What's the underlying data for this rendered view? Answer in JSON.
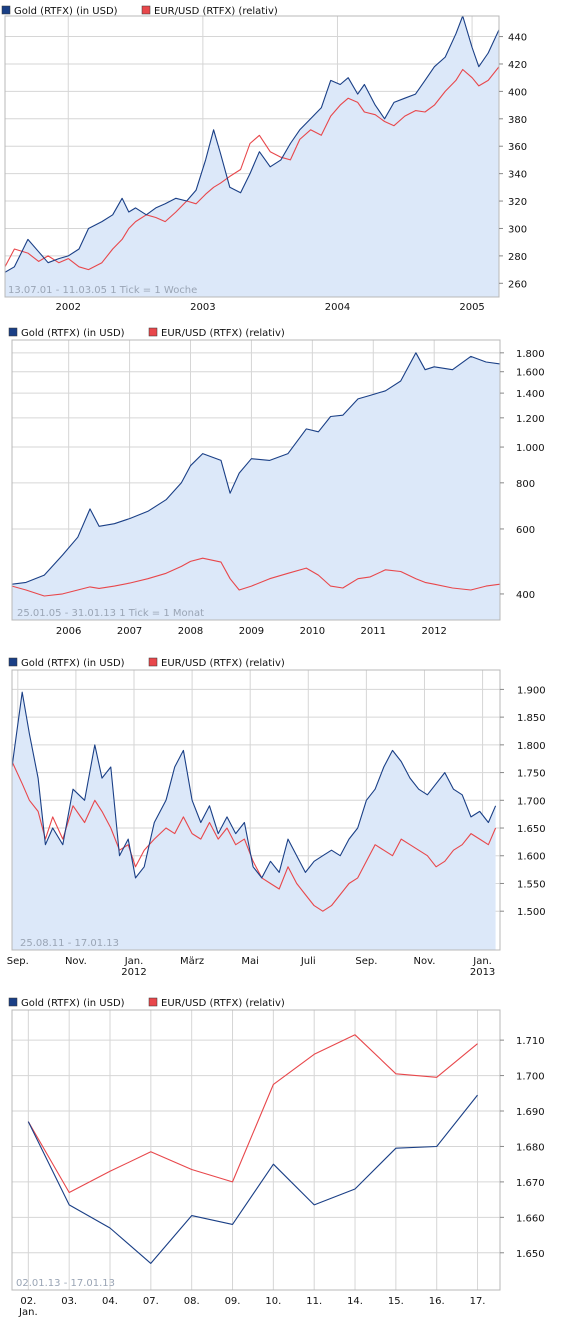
{
  "colors": {
    "gold": "#1a3f86",
    "eurusd": "#e8474b",
    "area": "#dce8f9",
    "grid": "#d6d6d6"
  },
  "chart_data": [
    {
      "type": "line",
      "legend": [
        {
          "name": "Gold (RTFX) (in USD)"
        },
        {
          "name": "EUR/USD (RTFX) (relativ)"
        }
      ],
      "note": "13.07.01 - 11.03.05   1 Tick = 1 Woche",
      "ylim": [
        250,
        455
      ],
      "yticks": [
        {
          "value": 260,
          "label": "260"
        },
        {
          "value": 280,
          "label": "280"
        },
        {
          "value": 300,
          "label": "300"
        },
        {
          "value": 320,
          "label": "320"
        },
        {
          "value": 340,
          "label": "340"
        },
        {
          "value": 360,
          "label": "360"
        },
        {
          "value": 380,
          "label": "380"
        },
        {
          "value": 400,
          "label": "400"
        },
        {
          "value": 420,
          "label": "420"
        },
        {
          "value": 440,
          "label": "440"
        }
      ],
      "xlim": [
        2001.53,
        2005.2
      ],
      "xticks": [
        {
          "value": 2002.0,
          "label": "2002"
        },
        {
          "value": 2003.0,
          "label": "2003"
        },
        {
          "value": 2004.0,
          "label": "2004"
        },
        {
          "value": 2005.0,
          "label": "2005"
        }
      ],
      "series": [
        {
          "name": "Gold (RTFX) (in USD)",
          "area": true,
          "x": [
            2001.53,
            2001.6,
            2001.7,
            2001.78,
            2001.85,
            2001.93,
            2002.0,
            2002.08,
            2002.15,
            2002.25,
            2002.33,
            2002.4,
            2002.45,
            2002.5,
            2002.58,
            2002.65,
            2002.72,
            2002.8,
            2002.88,
            2002.95,
            2003.02,
            2003.08,
            2003.13,
            2003.2,
            2003.28,
            2003.35,
            2003.42,
            2003.5,
            2003.58,
            2003.65,
            2003.72,
            2003.8,
            2003.88,
            2003.95,
            2004.02,
            2004.08,
            2004.15,
            2004.2,
            2004.28,
            2004.35,
            2004.42,
            2004.5,
            2004.58,
            2004.65,
            2004.72,
            2004.8,
            2004.88,
            2004.93,
            2005.0,
            2005.05,
            2005.12,
            2005.2
          ],
          "values": [
            268,
            272,
            292,
            283,
            275,
            278,
            280,
            285,
            300,
            305,
            310,
            322,
            312,
            315,
            310,
            315,
            318,
            322,
            320,
            328,
            350,
            372,
            355,
            330,
            326,
            340,
            356,
            345,
            350,
            362,
            372,
            380,
            388,
            408,
            405,
            410,
            398,
            405,
            390,
            380,
            392,
            395,
            398,
            408,
            418,
            425,
            442,
            455,
            432,
            418,
            428,
            445
          ]
        },
        {
          "name": "EUR/USD (RTFX) (relativ)",
          "area": false,
          "x": [
            2001.53,
            2001.6,
            2001.7,
            2001.78,
            2001.85,
            2001.93,
            2002.0,
            2002.08,
            2002.15,
            2002.25,
            2002.33,
            2002.4,
            2002.45,
            2002.5,
            2002.58,
            2002.65,
            2002.72,
            2002.8,
            2002.88,
            2002.95,
            2003.02,
            2003.08,
            2003.13,
            2003.2,
            2003.28,
            2003.35,
            2003.42,
            2003.5,
            2003.58,
            2003.65,
            2003.72,
            2003.8,
            2003.88,
            2003.95,
            2004.02,
            2004.08,
            2004.15,
            2004.2,
            2004.28,
            2004.35,
            2004.42,
            2004.5,
            2004.58,
            2004.65,
            2004.72,
            2004.8,
            2004.88,
            2004.93,
            2005.0,
            2005.05,
            2005.12,
            2005.2
          ],
          "values": [
            272,
            285,
            282,
            276,
            280,
            275,
            278,
            272,
            270,
            275,
            285,
            292,
            300,
            305,
            310,
            308,
            305,
            312,
            320,
            318,
            325,
            330,
            333,
            338,
            343,
            362,
            368,
            356,
            352,
            350,
            365,
            372,
            368,
            382,
            390,
            395,
            392,
            385,
            383,
            378,
            375,
            382,
            386,
            385,
            390,
            400,
            408,
            416,
            410,
            404,
            408,
            418
          ]
        }
      ]
    },
    {
      "type": "line",
      "legend": [
        {
          "name": "Gold (RTFX) (in USD)"
        },
        {
          "name": "EUR/USD (RTFX) (relativ)"
        }
      ],
      "note": "25.01.05 - 31.01.13   1 Tick = 1 Monat",
      "log": true,
      "ylim": [
        340,
        1950
      ],
      "yticks": [
        {
          "value": 400,
          "label": "400"
        },
        {
          "value": 600,
          "label": "600"
        },
        {
          "value": 800,
          "label": "800"
        },
        {
          "value": 1000,
          "label": "1.000"
        },
        {
          "value": 1200,
          "label": "1.200"
        },
        {
          "value": 1400,
          "label": "1.400"
        },
        {
          "value": 1600,
          "label": "1.600"
        },
        {
          "value": 1800,
          "label": "1.800"
        }
      ],
      "xlim": [
        2005.07,
        2013.08
      ],
      "xticks": [
        {
          "value": 2006.0,
          "label": "2006"
        },
        {
          "value": 2007.0,
          "label": "2007"
        },
        {
          "value": 2008.0,
          "label": "2008"
        },
        {
          "value": 2009.0,
          "label": "2009"
        },
        {
          "value": 2010.0,
          "label": "2010"
        },
        {
          "value": 2011.0,
          "label": "2011"
        },
        {
          "value": 2012.0,
          "label": "2012"
        }
      ],
      "series": [
        {
          "name": "Gold (RTFX) (in USD)",
          "area": true,
          "x": [
            2005.07,
            2005.3,
            2005.6,
            2005.9,
            2006.15,
            2006.35,
            2006.5,
            2006.75,
            2007.0,
            2007.3,
            2007.6,
            2007.85,
            2008.0,
            2008.2,
            2008.5,
            2008.65,
            2008.8,
            2009.0,
            2009.3,
            2009.6,
            2009.9,
            2010.1,
            2010.3,
            2010.5,
            2010.75,
            2010.95,
            2011.2,
            2011.45,
            2011.7,
            2011.85,
            2012.0,
            2012.3,
            2012.6,
            2012.85,
            2013.08
          ],
          "values": [
            425,
            430,
            450,
            510,
            570,
            680,
            610,
            620,
            640,
            670,
            720,
            800,
            890,
            960,
            920,
            750,
            850,
            930,
            920,
            960,
            1120,
            1100,
            1210,
            1220,
            1350,
            1380,
            1420,
            1510,
            1800,
            1620,
            1650,
            1620,
            1760,
            1700,
            1680
          ]
        },
        {
          "name": "EUR/USD (RTFX) (relativ)",
          "area": false,
          "x": [
            2005.07,
            2005.3,
            2005.6,
            2005.9,
            2006.15,
            2006.35,
            2006.5,
            2006.75,
            2007.0,
            2007.3,
            2007.6,
            2007.85,
            2008.0,
            2008.2,
            2008.5,
            2008.65,
            2008.8,
            2009.0,
            2009.3,
            2009.6,
            2009.9,
            2010.1,
            2010.3,
            2010.5,
            2010.75,
            2010.95,
            2011.2,
            2011.45,
            2011.7,
            2011.85,
            2012.0,
            2012.3,
            2012.6,
            2012.85,
            2013.08
          ],
          "values": [
            420,
            410,
            395,
            400,
            410,
            418,
            414,
            420,
            428,
            440,
            455,
            475,
            490,
            500,
            488,
            440,
            410,
            420,
            440,
            455,
            470,
            450,
            420,
            415,
            440,
            445,
            465,
            460,
            440,
            430,
            425,
            415,
            410,
            420,
            425
          ]
        }
      ]
    },
    {
      "type": "line",
      "legend": [
        {
          "name": "Gold (RTFX) (in USD)"
        },
        {
          "name": "EUR/USD (RTFX) (relativ)"
        }
      ],
      "note": "25.08.11 - 17.01.13",
      "ylim": [
        1.43,
        1.935
      ],
      "yticks": [
        {
          "value": 1.5,
          "label": "1.500"
        },
        {
          "value": 1.55,
          "label": "1.550"
        },
        {
          "value": 1.6,
          "label": "1.600"
        },
        {
          "value": 1.65,
          "label": "1.650"
        },
        {
          "value": 1.7,
          "label": "1.700"
        },
        {
          "value": 1.75,
          "label": "1.750"
        },
        {
          "value": 1.8,
          "label": "1.800"
        },
        {
          "value": 1.85,
          "label": "1.850"
        },
        {
          "value": 1.9,
          "label": "1.900"
        }
      ],
      "xlim": [
        0.0,
        16.8
      ],
      "xticks": [
        {
          "value": 0.2,
          "label": "Sep.",
          "label2": ""
        },
        {
          "value": 2.2,
          "label": "Nov.",
          "label2": ""
        },
        {
          "value": 4.2,
          "label": "Jan.",
          "label2": "2012"
        },
        {
          "value": 6.2,
          "label": "März",
          "label2": ""
        },
        {
          "value": 8.2,
          "label": "Mai",
          "label2": ""
        },
        {
          "value": 10.2,
          "label": "Juli",
          "label2": ""
        },
        {
          "value": 12.2,
          "label": "Sep.",
          "label2": ""
        },
        {
          "value": 14.2,
          "label": "Nov.",
          "label2": ""
        },
        {
          "value": 16.2,
          "label": "Jan.",
          "label2": "2013"
        }
      ],
      "series": [
        {
          "name": "Gold (RTFX) (in USD)",
          "area": true,
          "x": [
            0.0,
            0.35,
            0.6,
            0.9,
            1.15,
            1.4,
            1.75,
            2.1,
            2.5,
            2.85,
            3.1,
            3.4,
            3.7,
            4.0,
            4.25,
            4.55,
            4.9,
            5.3,
            5.6,
            5.9,
            6.2,
            6.5,
            6.8,
            7.1,
            7.4,
            7.7,
            8.0,
            8.3,
            8.6,
            8.9,
            9.2,
            9.5,
            9.8,
            10.1,
            10.4,
            10.7,
            11.0,
            11.3,
            11.6,
            11.9,
            12.2,
            12.5,
            12.8,
            13.1,
            13.4,
            13.7,
            14.0,
            14.3,
            14.6,
            14.9,
            15.2,
            15.5,
            15.8,
            16.1,
            16.4,
            16.65
          ],
          "values": [
            1.76,
            1.895,
            1.82,
            1.74,
            1.62,
            1.65,
            1.62,
            1.72,
            1.7,
            1.8,
            1.74,
            1.76,
            1.6,
            1.63,
            1.56,
            1.58,
            1.66,
            1.7,
            1.76,
            1.79,
            1.7,
            1.66,
            1.69,
            1.64,
            1.67,
            1.64,
            1.66,
            1.58,
            1.56,
            1.59,
            1.57,
            1.63,
            1.6,
            1.57,
            1.59,
            1.6,
            1.61,
            1.6,
            1.63,
            1.65,
            1.7,
            1.72,
            1.76,
            1.79,
            1.77,
            1.74,
            1.72,
            1.71,
            1.73,
            1.75,
            1.72,
            1.71,
            1.67,
            1.68,
            1.66,
            1.69
          ]
        },
        {
          "name": "EUR/USD (RTFX) (relativ)",
          "area": false,
          "x": [
            0.0,
            0.35,
            0.6,
            0.9,
            1.15,
            1.4,
            1.75,
            2.1,
            2.5,
            2.85,
            3.1,
            3.4,
            3.7,
            4.0,
            4.25,
            4.55,
            4.9,
            5.3,
            5.6,
            5.9,
            6.2,
            6.5,
            6.8,
            7.1,
            7.4,
            7.7,
            8.0,
            8.3,
            8.6,
            8.9,
            9.2,
            9.5,
            9.8,
            10.1,
            10.4,
            10.7,
            11.0,
            11.3,
            11.6,
            11.9,
            12.2,
            12.5,
            12.8,
            13.1,
            13.4,
            13.7,
            14.0,
            14.3,
            14.6,
            14.9,
            15.2,
            15.5,
            15.8,
            16.1,
            16.4,
            16.65
          ],
          "values": [
            1.77,
            1.73,
            1.7,
            1.68,
            1.63,
            1.67,
            1.63,
            1.69,
            1.66,
            1.7,
            1.68,
            1.65,
            1.61,
            1.62,
            1.58,
            1.61,
            1.63,
            1.65,
            1.64,
            1.67,
            1.64,
            1.63,
            1.66,
            1.63,
            1.65,
            1.62,
            1.63,
            1.59,
            1.56,
            1.55,
            1.54,
            1.58,
            1.55,
            1.53,
            1.51,
            1.5,
            1.51,
            1.53,
            1.55,
            1.56,
            1.59,
            1.62,
            1.61,
            1.6,
            1.63,
            1.62,
            1.61,
            1.6,
            1.58,
            1.59,
            1.61,
            1.62,
            1.64,
            1.63,
            1.62,
            1.65
          ]
        }
      ]
    },
    {
      "type": "line",
      "legend": [
        {
          "name": "Gold (RTFX) (in USD)"
        },
        {
          "name": "EUR/USD (RTFX) (relativ)"
        }
      ],
      "note": "02.01.13 - 17.01.13",
      "ylim": [
        1.6395,
        1.7185
      ],
      "yticks": [
        {
          "value": 1.65,
          "label": "1.650"
        },
        {
          "value": 1.66,
          "label": "1.660"
        },
        {
          "value": 1.67,
          "label": "1.670"
        },
        {
          "value": 1.68,
          "label": "1.680"
        },
        {
          "value": 1.69,
          "label": "1.690"
        },
        {
          "value": 1.7,
          "label": "1.700"
        },
        {
          "value": 1.71,
          "label": "1.710"
        }
      ],
      "xlim": [
        -0.4,
        11.55
      ],
      "xticks": [
        {
          "value": 0,
          "label": "02.",
          "label2": "Jan."
        },
        {
          "value": 1,
          "label": "03.",
          "label2": ""
        },
        {
          "value": 2,
          "label": "04.",
          "label2": ""
        },
        {
          "value": 3,
          "label": "07.",
          "label2": ""
        },
        {
          "value": 4,
          "label": "08.",
          "label2": ""
        },
        {
          "value": 5,
          "label": "09.",
          "label2": ""
        },
        {
          "value": 6,
          "label": "10.",
          "label2": ""
        },
        {
          "value": 7,
          "label": "11.",
          "label2": ""
        },
        {
          "value": 8,
          "label": "14.",
          "label2": ""
        },
        {
          "value": 9,
          "label": "15.",
          "label2": ""
        },
        {
          "value": 10,
          "label": "16.",
          "label2": ""
        },
        {
          "value": 11,
          "label": "17.",
          "label2": ""
        }
      ],
      "series": [
        {
          "name": "Gold (RTFX) (in USD)",
          "area": false,
          "x": [
            0,
            1,
            2,
            3,
            4,
            5,
            6,
            7,
            8,
            9,
            10,
            11
          ],
          "values": [
            1.687,
            1.6635,
            1.657,
            1.647,
            1.6605,
            1.658,
            1.675,
            1.6635,
            1.668,
            1.6795,
            1.68,
            1.6945
          ]
        },
        {
          "name": "EUR/USD (RTFX) (relativ)",
          "area": false,
          "x": [
            0,
            1,
            2,
            3,
            4,
            5,
            6,
            7,
            8,
            9,
            10,
            11
          ],
          "values": [
            1.687,
            1.667,
            1.673,
            1.6785,
            1.6735,
            1.67,
            1.6975,
            1.706,
            1.7115,
            1.7005,
            1.6995,
            1.709
          ]
        }
      ]
    }
  ]
}
